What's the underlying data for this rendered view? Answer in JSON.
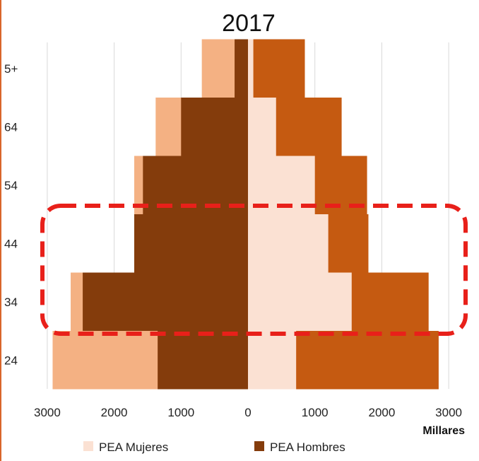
{
  "chart_data": {
    "type": "bar",
    "title": "2017",
    "unit_label": "Millares",
    "age_groups": [
      "24",
      "34",
      "44",
      "54",
      "64",
      "5+"
    ],
    "x_ticks": [
      "3000",
      "2000",
      "1000",
      "0",
      "1000",
      "2000",
      "3000"
    ],
    "xlim": [
      -3000,
      3000
    ],
    "series": [
      {
        "name": "PEA Mujeres",
        "side": "right",
        "values": [
          720,
          1550,
          1200,
          1000,
          420,
          80
        ]
      },
      {
        "name": "PEA Hombres",
        "side": "left",
        "values": [
          1350,
          2470,
          1700,
          1570,
          1000,
          200
        ]
      }
    ],
    "series_unlabeled": [
      {
        "side": "left",
        "values": [
          2920,
          2650,
          1700,
          1700,
          1380,
          690
        ]
      },
      {
        "side": "right",
        "values": [
          2850,
          2700,
          1800,
          1780,
          1400,
          850
        ]
      }
    ],
    "grid": true,
    "legend_position": "bottom",
    "annotation": {
      "shape": "dashed-rounded-rectangle",
      "color": "#e8201a",
      "covers_age_groups": [
        "34",
        "44"
      ]
    },
    "colors": {
      "pea_mujeres": "#fbe1d3",
      "pea_hombres": "#843c0c",
      "total_female_left": "#f4b183",
      "total_right": "#c55a11",
      "grid": "#d9d9d9",
      "annotation": "#e8201a"
    }
  }
}
